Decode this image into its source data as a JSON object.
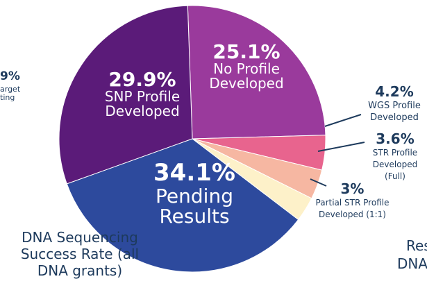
{
  "chart_data": {
    "type": "pie",
    "title": "DNA Sequencing Success Rate (all DNA grants)",
    "categories": [
      "No Profile Developed",
      "WGS Profile Developed",
      "STR Profile Developed (Full)",
      "Partial STR Profile Developed (1:1)",
      "Pending Results",
      "SNP Profile Developed"
    ],
    "values": [
      25.1,
      4.2,
      3.6,
      3,
      34.1,
      29.9
    ],
    "value_labels": [
      "25.1%",
      "4.2%",
      "3.6%",
      "3%",
      "34.1%",
      "29.9%"
    ],
    "colors": [
      "#9a3a9c",
      "#e8648e",
      "#f6b7a2",
      "#fdf1c9",
      "#2d4a9d",
      "#5b1b79"
    ],
    "fragments": [
      "9%",
      "arget",
      "ting",
      "Res",
      "DNA"
    ]
  }
}
